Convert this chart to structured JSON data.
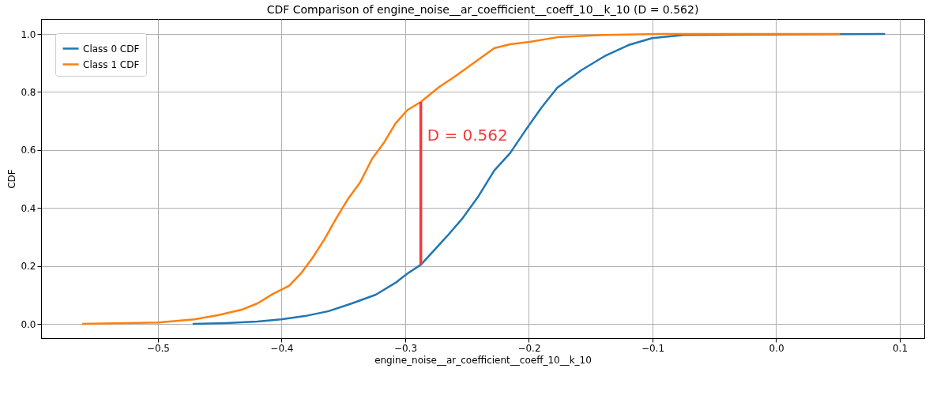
{
  "chart_data": {
    "type": "line",
    "title": "CDF Comparison of engine_noise__ar_coefficient__coeff_10__k_10 (D = 0.562)",
    "xlabel": "engine_noise__ar_coefficient__coeff_10__k_10",
    "ylabel": "CDF",
    "xlim": [
      -0.5945,
      0.1198
    ],
    "ylim": [
      -0.049,
      1.052
    ],
    "xticks": [
      -0.5,
      -0.4,
      -0.3,
      -0.2,
      -0.1,
      {
        "value": 0,
        "label": "0.0"
      },
      0.1
    ],
    "yticks": [
      {
        "value": 0,
        "label": "0.0"
      },
      0.2,
      0.4,
      0.6,
      0.8,
      {
        "value": 1,
        "label": "1.0"
      }
    ],
    "grid": true,
    "legend": "top left",
    "series": [
      {
        "name": "Class 0 CDF",
        "color": "#1f77b4",
        "x": [
          -0.4719,
          -0.4451,
          -0.4195,
          -0.4004,
          -0.3812,
          -0.362,
          -0.343,
          -0.3238,
          -0.3078,
          -0.2982,
          -0.2874,
          -0.279,
          -0.2663,
          -0.2535,
          -0.2407,
          -0.228,
          -0.2152,
          -0.2024,
          -0.1897,
          -0.177,
          -0.1577,
          -0.1386,
          -0.1194,
          -0.1003,
          -0.0747,
          0.0881
        ],
        "values": [
          0,
          0.003,
          0.008,
          0.016,
          0.027,
          0.044,
          0.071,
          0.101,
          0.142,
          0.174,
          0.204,
          0.243,
          0.302,
          0.365,
          0.441,
          0.529,
          0.589,
          0.67,
          0.747,
          0.815,
          0.875,
          0.924,
          0.962,
          0.986,
          0.997,
          1.0
        ]
      },
      {
        "name": "Class 1 CDF",
        "color": "#ff7f0e",
        "x": [
          -0.5613,
          -0.5,
          -0.4706,
          -0.4515,
          -0.4323,
          -0.4195,
          -0.4068,
          -0.394,
          -0.3844,
          -0.3748,
          -0.3653,
          -0.3557,
          -0.346,
          -0.3365,
          -0.3269,
          -0.3174,
          -0.3078,
          -0.2982,
          -0.2874,
          -0.2727,
          -0.26,
          -0.244,
          -0.228,
          -0.2152,
          -0.1993,
          -0.177,
          -0.1386,
          -0.0939,
          0.0517
        ],
        "values": [
          0,
          0.005,
          0.016,
          0.03,
          0.049,
          0.071,
          0.104,
          0.131,
          0.174,
          0.229,
          0.292,
          0.365,
          0.433,
          0.488,
          0.569,
          0.624,
          0.692,
          0.738,
          0.766,
          0.817,
          0.853,
          0.902,
          0.951,
          0.965,
          0.973,
          0.989,
          0.997,
          1.0,
          1.0
        ]
      },
      {
        "type": "line",
        "color": "#f33a3a",
        "x": [
          -0.2874,
          -0.2874
        ],
        "values": [
          0.204,
          0.766
        ]
      }
    ],
    "annotations": [
      {
        "text": "D = 0.562",
        "x": -0.2874,
        "y": 0.65
      }
    ]
  }
}
